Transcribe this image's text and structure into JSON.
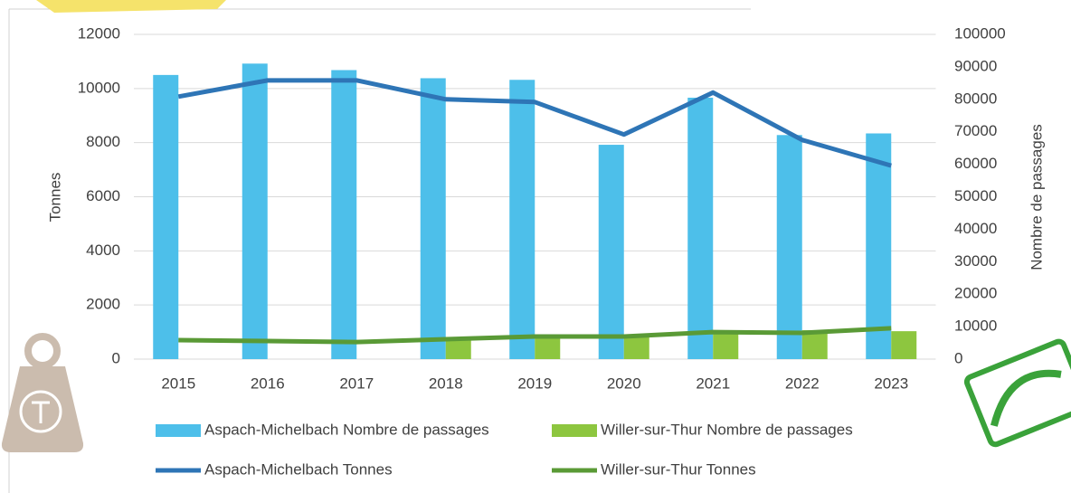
{
  "chart_data": {
    "type": "bar",
    "categories": [
      "2015",
      "2016",
      "2017",
      "2018",
      "2019",
      "2020",
      "2021",
      "2022",
      "2023"
    ],
    "y_label": "Tonnes",
    "y2_label": "Nombre de passages",
    "ylim": [
      0,
      12000
    ],
    "yticks": [
      0,
      2000,
      4000,
      6000,
      8000,
      10000,
      12000
    ],
    "y2lim": [
      0,
      100000
    ],
    "y2ticks": [
      0,
      10000,
      20000,
      30000,
      40000,
      50000,
      60000,
      70000,
      80000,
      90000,
      100000
    ],
    "grid": true,
    "series": [
      {
        "name": "Aspach-Michelbach Nombre de passages",
        "type": "bar",
        "axis": "y2",
        "color": "#4dbfea",
        "values": [
          87500,
          91000,
          89000,
          86500,
          86000,
          66000,
          80500,
          69000,
          69500
        ]
      },
      {
        "name": "Willer-sur-Thur Nombre de passages",
        "type": "bar",
        "axis": "y2",
        "color": "#8dc63f",
        "values": [
          null,
          null,
          null,
          6100,
          7000,
          7500,
          8900,
          8900,
          8600
        ]
      },
      {
        "name": "Aspach-Michelbach Tonnes",
        "type": "line",
        "axis": "y",
        "color": "#2e75b6",
        "values": [
          9700,
          10300,
          10300,
          9600,
          9500,
          8300,
          9850,
          8100,
          7150
        ]
      },
      {
        "name": "Willer-sur-Thur Tonnes",
        "type": "line",
        "axis": "y",
        "color": "#5a9a36",
        "values": [
          700,
          670,
          630,
          735,
          835,
          835,
          1000,
          970,
          1140
        ]
      }
    ]
  }
}
